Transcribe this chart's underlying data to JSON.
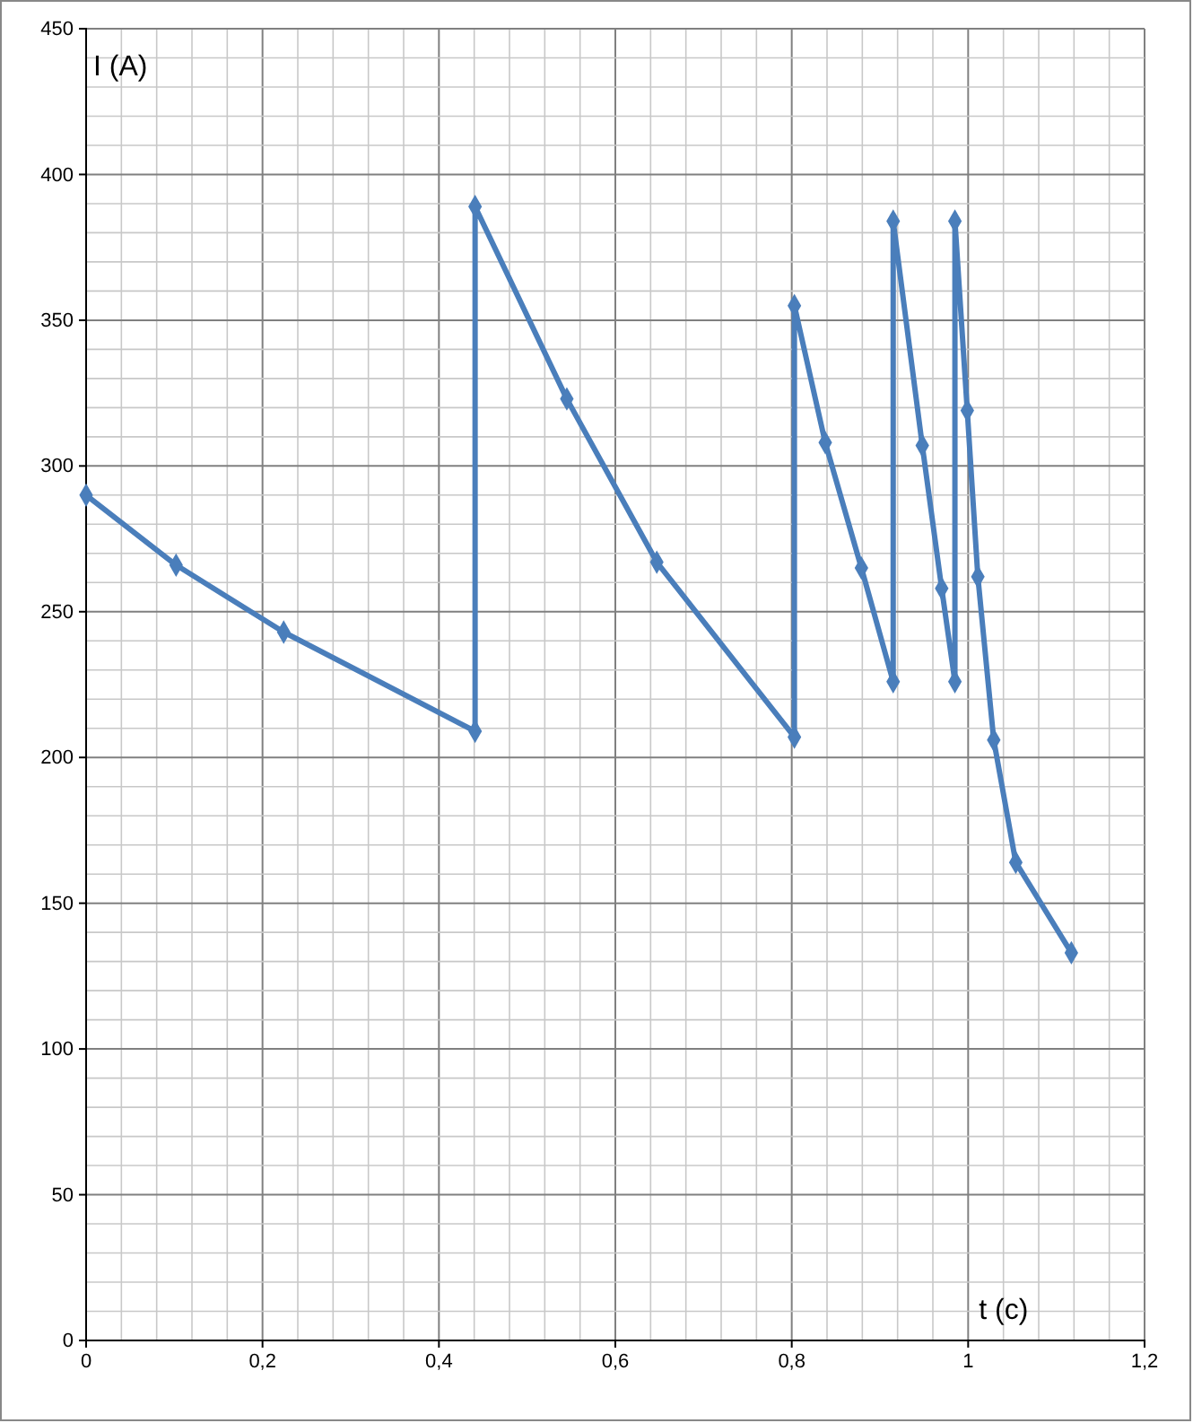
{
  "chart_data": {
    "type": "line",
    "xlabel": "t (c)",
    "ylabel": "I (A)",
    "x": [
      0,
      0.102,
      0.224,
      0.441,
      0.441,
      0.545,
      0.647,
      0.803,
      0.803,
      0.838,
      0.879,
      0.915,
      0.915,
      0.948,
      0.97,
      0.985,
      0.985,
      0.999,
      1.011,
      1.029,
      1.054,
      1.117
    ],
    "series": [
      {
        "color": "#4a7ebb",
        "values": [
          290,
          266,
          243,
          209,
          389,
          323,
          267,
          207,
          355,
          308,
          265,
          226,
          384,
          307,
          258,
          226,
          384,
          319,
          262,
          206,
          164,
          133
        ]
      }
    ],
    "xlim": [
      0,
      1.2
    ],
    "xticks": [
      0,
      {
        "value": 0.2,
        "label": "0,2"
      },
      {
        "value": 0.4,
        "label": "0,4"
      },
      {
        "value": 0.6,
        "label": "0,6"
      },
      {
        "value": 0.8,
        "label": "0,8"
      },
      1,
      {
        "value": 1.2,
        "label": "1,2"
      }
    ],
    "ylim": [
      0,
      450
    ],
    "yticks": [
      0,
      50,
      100,
      150,
      200,
      250,
      300,
      350,
      400,
      450
    ],
    "grid": true,
    "marker": "diamond",
    "line_style": "solid"
  }
}
